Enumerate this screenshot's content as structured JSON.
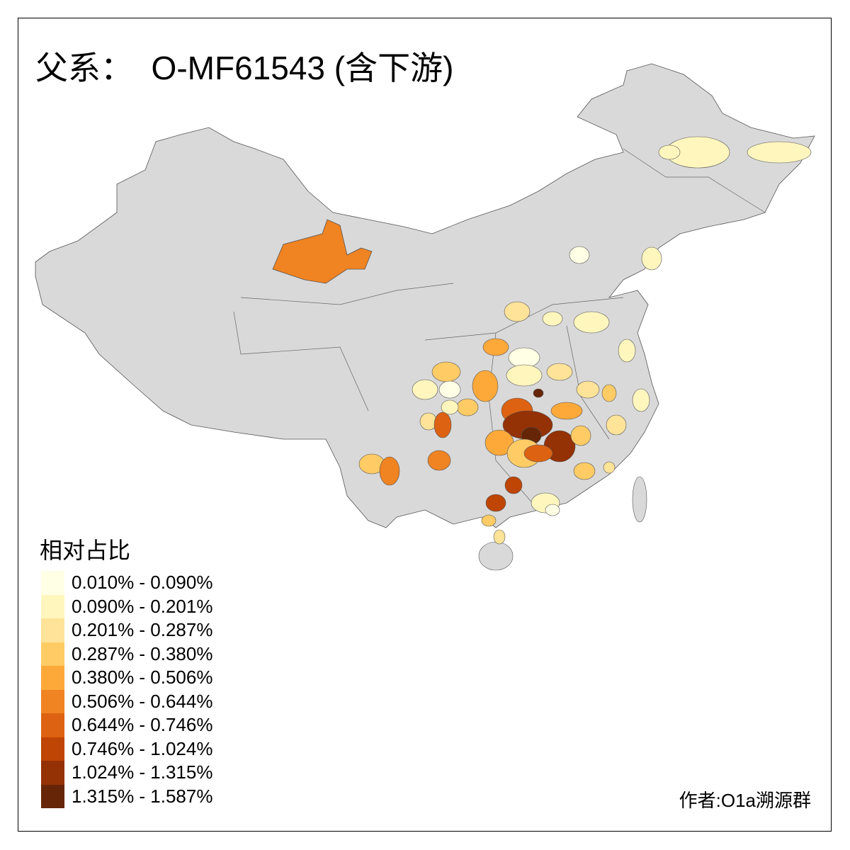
{
  "title": "父系：  O-MF61543 (含下游)",
  "legend": {
    "title": "相对占比",
    "items": [
      {
        "label": "0.010% - 0.090%",
        "color": "#FFFFE5"
      },
      {
        "label": "0.090% - 0.201%",
        "color": "#FFF6BE"
      },
      {
        "label": "0.201% - 0.287%",
        "color": "#FEE398"
      },
      {
        "label": "0.287% - 0.380%",
        "color": "#FECB65"
      },
      {
        "label": "0.380% - 0.506%",
        "color": "#FDA93A"
      },
      {
        "label": "0.506% - 0.644%",
        "color": "#F08322"
      },
      {
        "label": "0.644% - 0.746%",
        "color": "#DD6212"
      },
      {
        "label": "0.746% - 1.024%",
        "color": "#BE4504"
      },
      {
        "label": "1.024% - 1.315%",
        "color": "#943105"
      },
      {
        "label": "1.315% - 1.587%",
        "color": "#662506"
      }
    ]
  },
  "map": {
    "base_color": "#D9D9D9",
    "border_color": "#555555"
  },
  "author": "作者:O1a溯源群"
}
